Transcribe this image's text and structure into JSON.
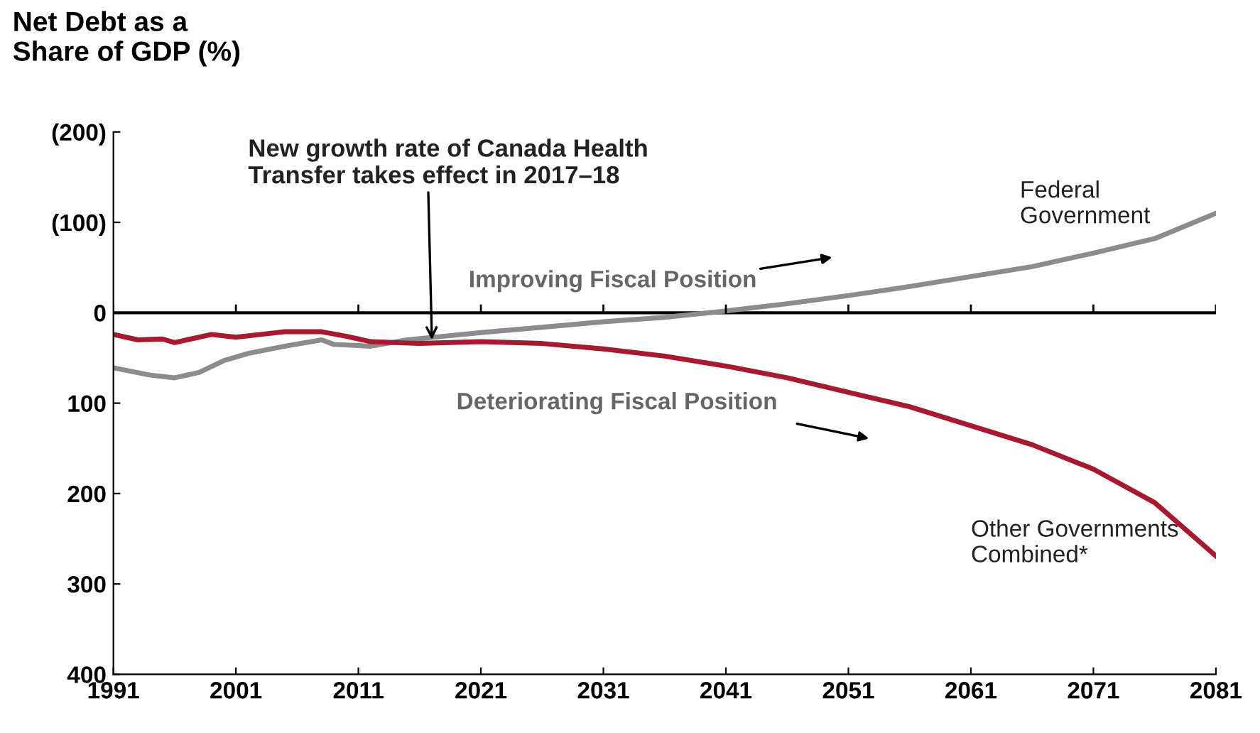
{
  "chart_data": {
    "type": "line",
    "ylabel": "Net Debt as a\nShare of GDP (%)",
    "x": [
      1991,
      1993,
      1995,
      1996,
      1997,
      1999,
      2001,
      2003,
      2005,
      2008,
      2010,
      2012,
      2016,
      2021,
      2026,
      2031,
      2036,
      2041,
      2046,
      2051,
      2056,
      2061,
      2066,
      2071,
      2076,
      2081
    ],
    "series": [
      {
        "name": "Federal\nGovernment",
        "color": "#8c8c8c",
        "x": [
          1991,
          1994,
          1996,
          1998,
          2000,
          2002,
          2005,
          2008,
          2009,
          2012,
          2015,
          2018,
          2021,
          2026,
          2031,
          2036,
          2041,
          2046,
          2051,
          2056,
          2061,
          2066,
          2071,
          2076,
          2081
        ],
        "values": [
          61,
          69,
          72,
          66,
          53,
          45,
          37,
          30,
          35,
          37,
          30,
          26,
          22,
          16,
          10,
          5,
          -2,
          -10,
          -19,
          -29,
          -40,
          -51,
          -66,
          -82,
          -110
        ]
      },
      {
        "name": "Other Governments\nCombined*",
        "color": "#a6192e",
        "values": [
          24,
          30,
          29,
          33,
          30,
          24,
          27,
          24,
          21,
          21,
          26,
          32,
          34,
          32,
          34,
          40,
          48,
          59,
          72,
          88,
          104,
          125,
          146,
          173,
          210,
          269
        ]
      }
    ],
    "xlim": [
      1991,
      2081
    ],
    "xticks": [
      1991,
      2001,
      2011,
      2021,
      2031,
      2041,
      2051,
      2061,
      2071,
      2081
    ],
    "ylim": [
      400,
      -200
    ],
    "yticks": [
      {
        "value": -200,
        "label": "(200)"
      },
      {
        "value": -100,
        "label": "(100)"
      },
      0,
      100,
      200,
      300,
      400
    ],
    "ref_lines": [
      {
        "axis": "y",
        "value": 0,
        "color": "#000000"
      }
    ],
    "annotations": [
      {
        "text": "New growth rate of Canada Health\nTransfer takes effect in 2017–18",
        "x": 2017,
        "y": 30
      },
      "Improving Fiscal Position",
      "Deteriorating Fiscal Position"
    ],
    "grid": false,
    "legend": false
  }
}
